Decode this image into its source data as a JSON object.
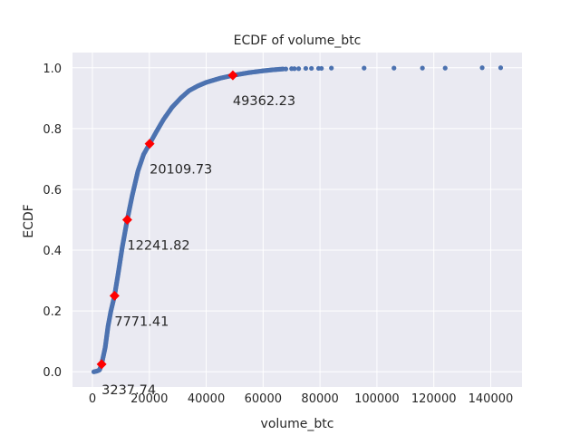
{
  "chart_data": {
    "type": "scatter",
    "title": "ECDF of volume_btc",
    "xlabel": "volume_btc",
    "ylabel": "ECDF",
    "xlim": [
      -7000,
      151000
    ],
    "ylim": [
      -0.05,
      1.05
    ],
    "x_ticks": [
      0,
      20000,
      40000,
      60000,
      80000,
      100000,
      120000,
      140000
    ],
    "y_ticks": [
      0.0,
      0.2,
      0.4,
      0.6,
      0.8,
      1.0
    ],
    "x_tick_labels": [
      "0",
      "20000",
      "40000",
      "60000",
      "80000",
      "100000",
      "120000",
      "140000"
    ],
    "y_tick_labels": [
      "0.0",
      "0.2",
      "0.4",
      "0.6",
      "0.8",
      "1.0"
    ],
    "grid": true,
    "legend": "none",
    "colors": {
      "points": "#4c72b0",
      "markers": "#ff0000",
      "background": "#eaeaf2",
      "grid": "#ffffff"
    },
    "ecdf_curve": {
      "x": [
        500,
        1500,
        2500,
        3237.74,
        4500,
        5500,
        6500,
        7771.41,
        9000,
        10500,
        12241.82,
        14000,
        16000,
        18000,
        20109.73,
        22500,
        25000,
        28000,
        31000,
        34000,
        37000,
        40000,
        45000,
        49362.23,
        55000,
        60000,
        63000,
        67000
      ],
      "y": [
        0.0,
        0.002,
        0.006,
        0.025,
        0.08,
        0.15,
        0.2,
        0.25,
        0.32,
        0.41,
        0.5,
        0.58,
        0.66,
        0.715,
        0.75,
        0.79,
        0.83,
        0.87,
        0.9,
        0.925,
        0.94,
        0.952,
        0.966,
        0.975,
        0.984,
        0.99,
        0.993,
        0.996
      ]
    },
    "ecdf_outliers": [
      {
        "x": 68000,
        "y": 0.996
      },
      {
        "x": 70000,
        "y": 0.997
      },
      {
        "x": 71000,
        "y": 0.997
      },
      {
        "x": 72500,
        "y": 0.997
      },
      {
        "x": 75000,
        "y": 0.998
      },
      {
        "x": 77000,
        "y": 0.998
      },
      {
        "x": 79500,
        "y": 0.998
      },
      {
        "x": 80500,
        "y": 0.998
      },
      {
        "x": 84000,
        "y": 0.999
      },
      {
        "x": 95500,
        "y": 0.999
      },
      {
        "x": 106000,
        "y": 0.999
      },
      {
        "x": 116000,
        "y": 0.999
      },
      {
        "x": 124000,
        "y": 0.999
      },
      {
        "x": 137000,
        "y": 1.0
      },
      {
        "x": 143500,
        "y": 1.0
      }
    ],
    "quantile_markers": [
      {
        "x": 3237.74,
        "y": 0.025,
        "label": "3237.74"
      },
      {
        "x": 7771.41,
        "y": 0.25,
        "label": "7771.41"
      },
      {
        "x": 12241.82,
        "y": 0.5,
        "label": "12241.82"
      },
      {
        "x": 20109.73,
        "y": 0.75,
        "label": "20109.73"
      },
      {
        "x": 49362.23,
        "y": 0.975,
        "label": "49362.23"
      }
    ]
  }
}
